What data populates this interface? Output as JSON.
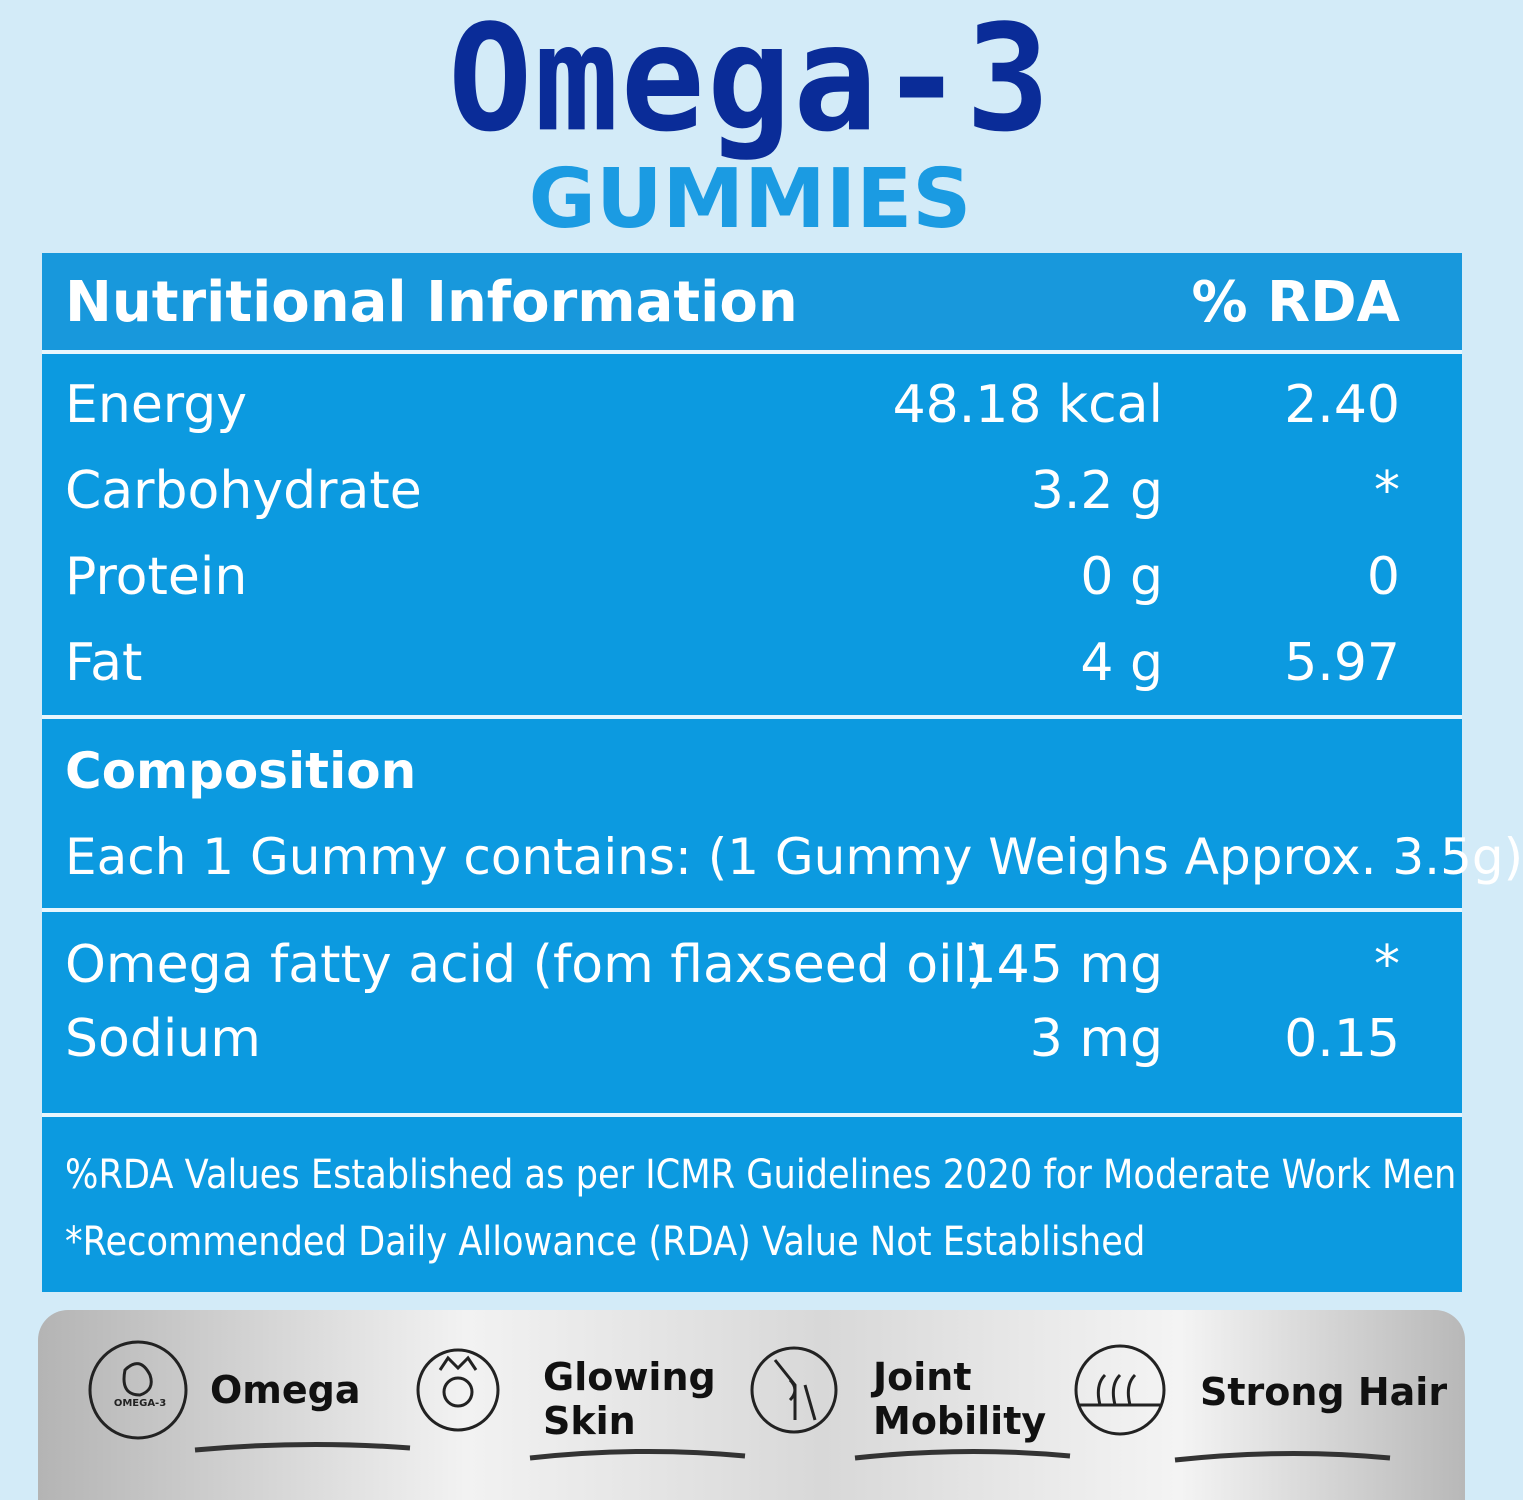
{
  "header": {
    "title": "Omega-3",
    "subtitle": "GUMMIES"
  },
  "table": {
    "header": [
      "Nutritional Information",
      "% RDA"
    ],
    "rows": [
      [
        "Energy",
        "48.18 kcal",
        "2.40"
      ],
      [
        "Carbohydrate",
        "3.2 g",
        "*"
      ],
      [
        "Protein",
        "0 g",
        "0"
      ],
      [
        "Fat",
        "4 g",
        "5.97"
      ]
    ]
  },
  "composition": {
    "title": "Composition",
    "text": "Each 1 Gummy contains: (1 Gummy Weighs Approx. 3.5g)",
    "rows": [
      [
        "Omega fatty acid  (fom flaxseed oil)",
        "145 mg",
        "*"
      ],
      [
        "Sodium",
        "3 mg",
        "0.15"
      ]
    ]
  },
  "notes": [
    "%RDA Values Established as per ICMR Guidelines 2020 for Moderate Work Men",
    "*Recommended Daily Allowance (RDA) Value Not Established"
  ],
  "benefits": {
    "icon_label": "OMEGA-3",
    "items": [
      "Omega",
      "Glowing Skin",
      "Joint Mobility",
      "Strong Hair"
    ]
  }
}
